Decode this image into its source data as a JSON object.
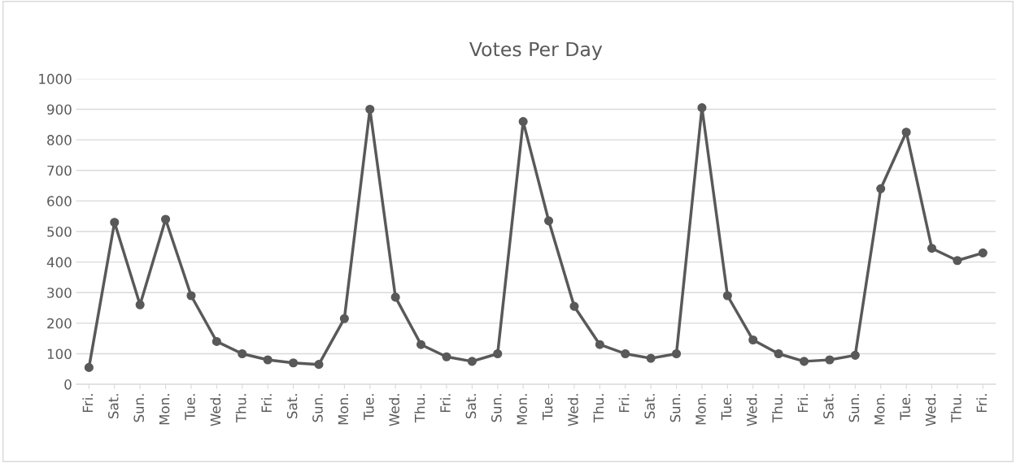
{
  "chart_data": {
    "type": "line",
    "title": "Votes Per Day",
    "categories": [
      "Fri.",
      "Sat.",
      "Sun.",
      "Mon.",
      "Tue.",
      "Wed.",
      "Thu.",
      "Fri.",
      "Sat.",
      "Sun.",
      "Mon.",
      "Tue.",
      "Wed.",
      "Thu.",
      "Fri.",
      "Sat.",
      "Sun.",
      "Mon.",
      "Tue.",
      "Wed.",
      "Thu.",
      "Fri.",
      "Sat.",
      "Sun.",
      "Mon.",
      "Tue.",
      "Wed.",
      "Thu.",
      "Fri.",
      "Sat.",
      "Sun.",
      "Mon.",
      "Tue.",
      "Wed.",
      "Thu.",
      "Fri."
    ],
    "series": [
      {
        "color": "#595959",
        "values": [
          55,
          530,
          260,
          540,
          290,
          140,
          100,
          80,
          70,
          65,
          215,
          900,
          285,
          130,
          90,
          75,
          100,
          860,
          535,
          255,
          130,
          100,
          85,
          100,
          905,
          290,
          145,
          100,
          75,
          80,
          95,
          640,
          825,
          445,
          405,
          430
        ]
      }
    ],
    "ylim": [
      0,
      1000
    ],
    "yticks": [
      0,
      100,
      200,
      300,
      400,
      500,
      600,
      700,
      800,
      900,
      1000
    ],
    "grid": "y",
    "marker": "circle",
    "line_style": "solid",
    "legend": false
  }
}
